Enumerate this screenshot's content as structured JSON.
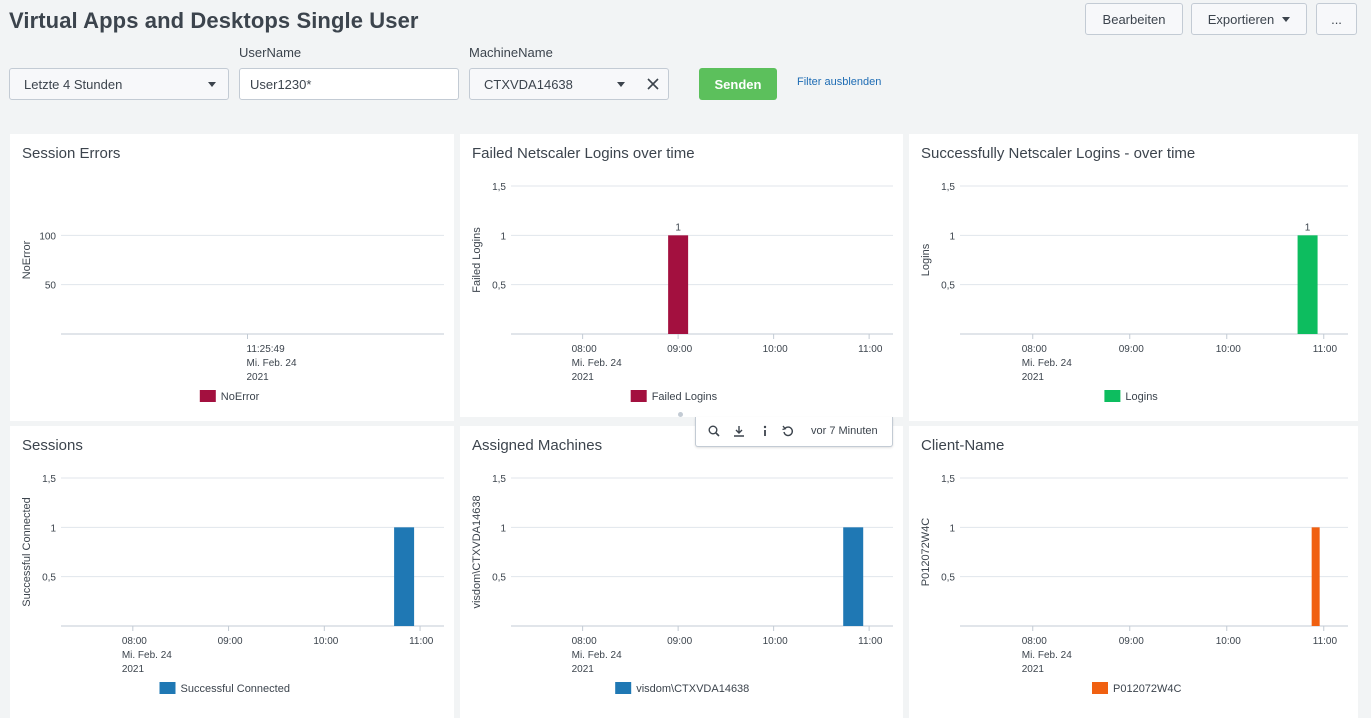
{
  "page": {
    "title": "Virtual Apps and Desktops Single User"
  },
  "actions": {
    "edit": "Bearbeiten",
    "export": "Exportieren",
    "more": "..."
  },
  "filters": {
    "time": {
      "value": "Letzte 4 Stunden"
    },
    "username": {
      "label": "UserName",
      "value": "User1230*"
    },
    "machine": {
      "label": "MachineName",
      "value": "CTXVDA14638"
    },
    "submit": "Senden",
    "hide": "Filter ausblenden"
  },
  "toolbar": {
    "refreshed": "vor 7 Minuten",
    "icons": [
      "search-icon",
      "download-icon",
      "info-icon",
      "refresh-icon"
    ]
  },
  "panels": [
    {
      "title": "Session Errors"
    },
    {
      "title": "Failed Netscaler Logins over time"
    },
    {
      "title": "Successfully Netscaler Logins - over time"
    },
    {
      "title": "Sessions"
    },
    {
      "title": "Assigned Machines"
    },
    {
      "title": "Client-Name"
    }
  ],
  "chart_data": [
    {
      "type": "bar",
      "title": "Session Errors",
      "ylabel": "NoError",
      "yticks": [
        "100",
        "50"
      ],
      "ylim": [
        0,
        150
      ],
      "xtick_lines": [
        [
          "11:25:49",
          "Mi. Feb. 24",
          "2021"
        ]
      ],
      "series": [
        {
          "name": "NoError",
          "color": "#a3103f",
          "values": []
        }
      ],
      "legend": "bottom-center",
      "grid": true
    },
    {
      "type": "bar",
      "title": "Failed Netscaler Logins over time",
      "ylabel": "Failed Logins",
      "yticks": [
        "1,5",
        "1",
        "0,5"
      ],
      "ylim": [
        0,
        1.5
      ],
      "xticks": [
        [
          "08:00",
          "Mi. Feb. 24",
          "2021"
        ],
        [
          "09:00"
        ],
        [
          "10:00"
        ],
        [
          "11:00"
        ]
      ],
      "x_range": [
        "2021-02-24T07:15",
        "2021-02-24T11:15"
      ],
      "series": [
        {
          "name": "Failed Logins",
          "color": "#a3103f",
          "bars": [
            {
              "x": "2021-02-24T09:00",
              "value": 1,
              "label": "1"
            }
          ]
        }
      ],
      "legend": "bottom-center",
      "grid": true
    },
    {
      "type": "bar",
      "title": "Successfully Netscaler Logins - over time",
      "ylabel": "Logins",
      "yticks": [
        "1,5",
        "1",
        "0,5"
      ],
      "ylim": [
        0,
        1.5
      ],
      "xticks": [
        [
          "08:00",
          "Mi. Feb. 24",
          "2021"
        ],
        [
          "09:00"
        ],
        [
          "10:00"
        ],
        [
          "11:00"
        ]
      ],
      "x_range": [
        "2021-02-24T07:15",
        "2021-02-24T11:15"
      ],
      "series": [
        {
          "name": "Logins",
          "color": "#0dbd5f",
          "bars": [
            {
              "x": "2021-02-24T10:50",
              "value": 1,
              "label": "1"
            }
          ]
        }
      ],
      "legend": "bottom-center",
      "grid": true
    },
    {
      "type": "bar",
      "title": "Sessions",
      "ylabel": "Successful Connected",
      "yticks": [
        "1,5",
        "1",
        "0,5"
      ],
      "ylim": [
        0,
        1.5
      ],
      "xticks": [
        [
          "08:00",
          "Mi. Feb. 24",
          "2021"
        ],
        [
          "09:00"
        ],
        [
          "10:00"
        ],
        [
          "11:00"
        ]
      ],
      "x_range": [
        "2021-02-24T07:15",
        "2021-02-24T11:15"
      ],
      "series": [
        {
          "name": "Successful Connected",
          "color": "#1f78b4",
          "bars": [
            {
              "x": "2021-02-24T10:50",
              "value": 1
            }
          ]
        }
      ],
      "legend": "bottom-center",
      "grid": true
    },
    {
      "type": "bar",
      "title": "Assigned Machines",
      "ylabel": "visdom\\CTXVDA14638",
      "yticks": [
        "1,5",
        "1",
        "0,5"
      ],
      "ylim": [
        0,
        1.5
      ],
      "xticks": [
        [
          "08:00",
          "Mi. Feb. 24",
          "2021"
        ],
        [
          "09:00"
        ],
        [
          "10:00"
        ],
        [
          "11:00"
        ]
      ],
      "x_range": [
        "2021-02-24T07:15",
        "2021-02-24T11:15"
      ],
      "series": [
        {
          "name": "visdom\\CTXVDA14638",
          "color": "#1f78b4",
          "bars": [
            {
              "x": "2021-02-24T10:50",
              "value": 1
            }
          ]
        }
      ],
      "legend": "bottom-center",
      "grid": true
    },
    {
      "type": "bar",
      "title": "Client-Name",
      "ylabel": "P012072W4C",
      "yticks": [
        "1,5",
        "1",
        "0,5"
      ],
      "ylim": [
        0,
        1.5
      ],
      "xticks": [
        [
          "08:00",
          "Mi. Feb. 24",
          "2021"
        ],
        [
          "09:00"
        ],
        [
          "10:00"
        ],
        [
          "11:00"
        ]
      ],
      "x_range": [
        "2021-02-24T07:15",
        "2021-02-24T11:15"
      ],
      "series": [
        {
          "name": "P012072W4C",
          "color": "#f06011",
          "bars": [
            {
              "x": "2021-02-24T10:55",
              "value": 1
            }
          ]
        }
      ],
      "legend": "bottom-center",
      "grid": true
    }
  ]
}
